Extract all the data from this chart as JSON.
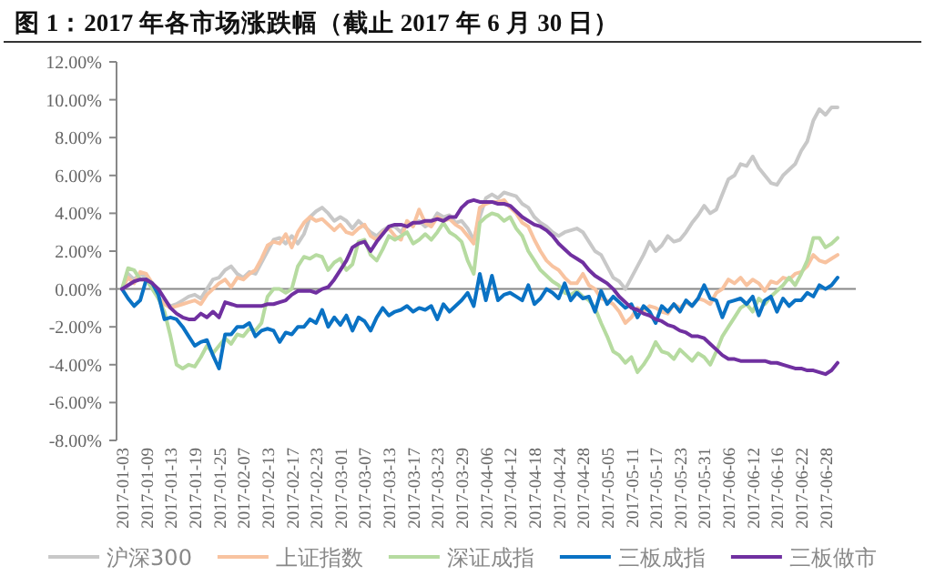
{
  "chart_data": {
    "type": "line",
    "title": "图 1：2017 年各市场涨跌幅（截止 2017 年 6 月 30 日）",
    "categories": [
      "2017-01-03",
      null,
      null,
      null,
      "2017-01-09",
      null,
      null,
      null,
      "2017-01-13",
      null,
      null,
      null,
      "2017-01-19",
      null,
      null,
      null,
      "2017-01-25",
      null,
      null,
      null,
      "2017-02-07",
      null,
      null,
      null,
      "2017-02-13",
      null,
      null,
      null,
      "2017-02-17",
      null,
      null,
      null,
      "2017-02-23",
      null,
      null,
      null,
      "2017-03-01",
      null,
      null,
      null,
      "2017-03-07",
      null,
      null,
      null,
      "2017-03-13",
      null,
      null,
      null,
      "2017-03-17",
      null,
      null,
      null,
      "2017-03-23",
      null,
      null,
      null,
      "2017-03-29",
      null,
      null,
      null,
      "2017-04-06",
      null,
      null,
      null,
      "2017-04-12",
      null,
      null,
      null,
      "2017-04-18",
      null,
      null,
      null,
      "2017-04-24",
      null,
      null,
      null,
      "2017-04-28",
      null,
      null,
      null,
      "2017-05-05",
      null,
      null,
      null,
      "2017-05-11",
      null,
      null,
      null,
      "2017-05-17",
      null,
      null,
      null,
      "2017-05-23",
      null,
      null,
      null,
      "2017-05-31",
      null,
      null,
      null,
      "2017-06-06",
      null,
      null,
      null,
      "2017-06-12",
      null,
      null,
      null,
      "2017-06-16",
      null,
      null,
      null,
      "2017-06-22",
      null,
      null,
      null,
      "2017-06-28",
      null,
      null
    ],
    "series": [
      {
        "name": "沪深300",
        "color": "#c8c8c8",
        "values": [
          0,
          0.8,
          0.5,
          0.8,
          0.6,
          0.2,
          -0.5,
          -0.7,
          -0.9,
          -0.8,
          -0.6,
          -0.4,
          -0.3,
          -0.5,
          0,
          0.5,
          0.6,
          1.0,
          1.2,
          0.8,
          0.6,
          0.9,
          0.8,
          1.4,
          2.0,
          2.6,
          2.7,
          2.4,
          2.8,
          2.4,
          2.9,
          3.8,
          4.1,
          4.3,
          4.0,
          3.6,
          3.8,
          3.6,
          3.2,
          3.6,
          3.3,
          3.0,
          2.8,
          3.1,
          3.3,
          3.3,
          3.0,
          3.5,
          3.4,
          3.6,
          3.3,
          3.5,
          4.0,
          3.8,
          3.9,
          3.5,
          3.6,
          3.2,
          2.6,
          3.8,
          4.8,
          5.0,
          4.8,
          5.1,
          5.0,
          4.9,
          4.5,
          4.3,
          3.8,
          3.5,
          3.3,
          3.0,
          2.8,
          3.0,
          3.1,
          3.2,
          3.0,
          2.5,
          2.0,
          1.8,
          1.2,
          0.6,
          0.4,
          0.0,
          0.6,
          1.2,
          1.8,
          2.5,
          2.0,
          2.3,
          2.8,
          2.5,
          2.6,
          3.0,
          3.5,
          3.9,
          4.4,
          4.0,
          4.2,
          5.0,
          5.8,
          6.0,
          6.6,
          6.5,
          7.0,
          6.4,
          6.0,
          5.6,
          5.5,
          6.0,
          6.3,
          6.6,
          7.3,
          7.8,
          8.9,
          9.5,
          9.2,
          9.6,
          9.6
        ]
      },
      {
        "name": "上证指数",
        "color": "#f8c3a0",
        "values": [
          0,
          0.6,
          0.3,
          0.9,
          0.8,
          0.3,
          -0.5,
          -0.8,
          -1.0,
          -0.9,
          -0.8,
          -0.7,
          -0.6,
          -0.8,
          -0.3,
          0,
          0.3,
          0.5,
          0.1,
          0.6,
          0.5,
          0.8,
          1.0,
          1.6,
          2.3,
          2.5,
          2.4,
          2.9,
          2.2,
          3.0,
          3.5,
          3.8,
          3.6,
          3.7,
          3.4,
          3.1,
          3.4,
          3.0,
          2.9,
          3.2,
          3.4,
          2.8,
          2.6,
          3.0,
          3.2,
          2.8,
          2.6,
          3.6,
          3.3,
          4.2,
          3.5,
          3.3,
          3.8,
          3.6,
          3.7,
          3.4,
          3.2,
          2.8,
          2.4,
          4.3,
          4.5,
          4.6,
          4.6,
          4.7,
          4.3,
          4.0,
          3.5,
          3.3,
          2.6,
          2.0,
          1.5,
          1.2,
          1.0,
          0.6,
          0.3,
          0.3,
          0.8,
          0.2,
          0,
          -0.5,
          -0.6,
          -0.8,
          -1.2,
          -1.8,
          -1.5,
          -1.0,
          -1.2,
          -0.9,
          -1.0,
          -1.2,
          -1.3,
          -0.8,
          -1.0,
          -0.7,
          -0.9,
          -0.5,
          -0.6,
          -0.8,
          -0.2,
          0,
          0.5,
          0.3,
          0.6,
          0.2,
          0.5,
          0.3,
          -0.1,
          0.4,
          0.3,
          0.6,
          0.5,
          0.8,
          0.9,
          1.2,
          1.8,
          1.5,
          1.4,
          1.6,
          1.8
        ]
      },
      {
        "name": "深证成指",
        "color": "#b6dba0",
        "values": [
          0,
          1.1,
          1.0,
          0.5,
          0.5,
          0,
          -0.5,
          -1.2,
          -2.5,
          -4.0,
          -4.2,
          -4.0,
          -4.1,
          -3.6,
          -3.0,
          -3.4,
          -3.0,
          -2.6,
          -2.9,
          -2.4,
          -2.5,
          -2.1,
          -2.2,
          -1.8,
          -0.4,
          0,
          0,
          -0.2,
          0,
          1.2,
          1.7,
          1.6,
          1.8,
          1.7,
          1.0,
          1.4,
          1.6,
          1.0,
          1.3,
          2.5,
          2.6,
          1.8,
          1.5,
          2.1,
          2.8,
          2.6,
          2.8,
          3.0,
          2.4,
          2.6,
          2.9,
          2.6,
          3.0,
          3.5,
          3.0,
          2.8,
          2.5,
          1.5,
          0.8,
          3.5,
          3.8,
          4.0,
          3.9,
          3.6,
          3.8,
          3.2,
          2.8,
          2.0,
          1.5,
          1.0,
          0.7,
          0.4,
          0.2,
          -0.2,
          -0.3,
          -0.1,
          -0.4,
          -0.6,
          -1.0,
          -1.8,
          -2.5,
          -3.3,
          -3.5,
          -3.9,
          -3.6,
          -4.4,
          -4.0,
          -3.5,
          -2.8,
          -3.3,
          -3.4,
          -3.7,
          -3.2,
          -3.5,
          -3.8,
          -3.4,
          -3.6,
          -4.0,
          -3.3,
          -2.5,
          -2.0,
          -1.5,
          -1.0,
          -0.8,
          -1.2,
          -0.5,
          -0.8,
          -0.4,
          -0.1,
          0.2,
          0.6,
          0.2,
          0.8,
          1.5,
          2.7,
          2.7,
          2.2,
          2.4,
          2.7
        ]
      },
      {
        "name": "三板成指",
        "color": "#0a72c4",
        "values": [
          0,
          -0.5,
          -0.9,
          -0.6,
          0.5,
          0.3,
          -0.3,
          -1.6,
          -1.5,
          -1.6,
          -2.0,
          -2.5,
          -3.0,
          -2.8,
          -2.7,
          -3.5,
          -4.2,
          -2.4,
          -2.4,
          -2.0,
          -2.0,
          -1.8,
          -2.5,
          -2.2,
          -2.1,
          -2.2,
          -2.8,
          -2.3,
          -2.4,
          -2.0,
          -2.0,
          -1.6,
          -1.8,
          -1.1,
          -2.0,
          -1.5,
          -1.9,
          -1.4,
          -2.2,
          -1.5,
          -1.7,
          -2.2,
          -1.5,
          -1.0,
          -1.4,
          -1.2,
          -1.1,
          -0.9,
          -1.2,
          -1.0,
          -1.1,
          -0.9,
          -1.6,
          -0.8,
          -1.2,
          -0.9,
          -0.6,
          -0.2,
          -0.9,
          0.8,
          -0.6,
          0.7,
          -0.6,
          -0.3,
          -0.2,
          -0.4,
          -0.6,
          0.2,
          -0.8,
          -0.5,
          0,
          -0.2,
          -0.5,
          0.3,
          -0.6,
          -0.2,
          -0.5,
          -0.4,
          -1.2,
          -0.1,
          -0.8,
          -0.4,
          -0.7,
          -1.0,
          -0.8,
          -1.5,
          -0.9,
          -1.2,
          -1.8,
          -0.9,
          -1.2,
          -0.8,
          -1.2,
          -0.6,
          -0.9,
          -0.5,
          0.2,
          -0.5,
          -0.6,
          -1.5,
          -0.7,
          -0.6,
          -0.5,
          -0.8,
          -0.4,
          -1.4,
          -0.6,
          -0.4,
          -1.2,
          -0.5,
          -0.9,
          -0.6,
          -0.6,
          -0.2,
          -0.4,
          0.2,
          0,
          0.2,
          0.6
        ]
      },
      {
        "name": "三板做市",
        "color": "#7030a0",
        "values": [
          0,
          0.2,
          0.4,
          0.5,
          0.5,
          0.3,
          0,
          -0.5,
          -1.0,
          -1.3,
          -1.5,
          -1.6,
          -1.6,
          -1.3,
          -1.5,
          -1.2,
          -1.5,
          -0.7,
          -0.8,
          -0.9,
          -0.9,
          -0.9,
          -0.9,
          -0.9,
          -0.8,
          -0.8,
          -0.7,
          -0.6,
          -0.3,
          -0.1,
          -0.1,
          -0.1,
          -0.2,
          0,
          0.1,
          0.5,
          1.0,
          1.5,
          2.2,
          2.4,
          2.5,
          2.0,
          2.5,
          2.9,
          3.3,
          3.4,
          3.4,
          3.3,
          3.5,
          3.5,
          3.6,
          3.6,
          3.7,
          3.6,
          3.8,
          3.8,
          4.3,
          4.6,
          4.7,
          4.6,
          4.6,
          4.6,
          4.5,
          4.5,
          4.4,
          4.1,
          3.8,
          3.6,
          3.4,
          3.3,
          3.1,
          2.8,
          2.4,
          2.1,
          1.8,
          1.6,
          1.4,
          1.0,
          0.7,
          0.5,
          0.3,
          0,
          -0.4,
          -0.7,
          -1.0,
          -1.1,
          -1.3,
          -1.4,
          -1.6,
          -1.7,
          -1.9,
          -2.0,
          -2.2,
          -2.3,
          -2.5,
          -2.5,
          -2.6,
          -2.9,
          -3.2,
          -3.5,
          -3.7,
          -3.7,
          -3.8,
          -3.8,
          -3.8,
          -3.8,
          -3.8,
          -3.9,
          -3.9,
          -4.0,
          -4.1,
          -4.2,
          -4.2,
          -4.3,
          -4.3,
          -4.4,
          -4.5,
          -4.3,
          -3.9
        ]
      }
    ],
    "ylim": [
      -8,
      12
    ],
    "yticks": [
      {
        "value": -8,
        "label": "-8.00%"
      },
      {
        "value": -6,
        "label": "-6.00%"
      },
      {
        "value": -4,
        "label": "-4.00%"
      },
      {
        "value": -2,
        "label": "-2.00%"
      },
      {
        "value": 0,
        "label": "0.00%"
      },
      {
        "value": 2,
        "label": "2.00%"
      },
      {
        "value": 4,
        "label": "4.00%"
      },
      {
        "value": 6,
        "label": "6.00%"
      },
      {
        "value": 8,
        "label": "8.00%"
      },
      {
        "value": 10,
        "label": "10.00%"
      },
      {
        "value": 12,
        "label": "12.00%"
      }
    ],
    "legend": "bottom",
    "marker": "none",
    "line_style": "solid"
  }
}
